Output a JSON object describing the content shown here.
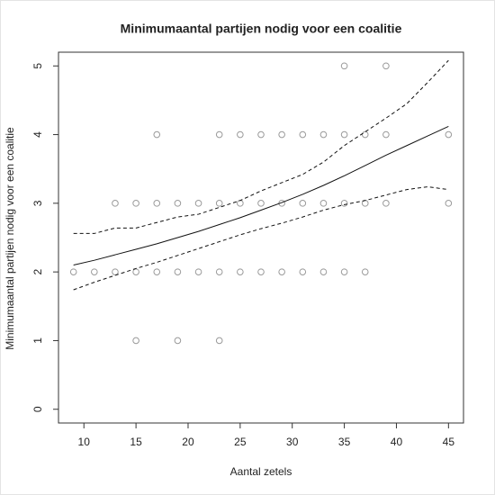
{
  "chart_data": {
    "type": "scatter",
    "title": "Minimumaantal partijen nodig voor een coalitie",
    "x_label": "Aantal zetels",
    "y_label": "Minimumaantal partijen nodig voor een coalitie",
    "xlim": [
      7.56,
      46.44
    ],
    "ylim": [
      -0.2,
      5.2
    ],
    "xticks": [
      10,
      15,
      20,
      25,
      30,
      35,
      40,
      45
    ],
    "yticks": [
      0,
      1,
      2,
      3,
      4,
      5
    ],
    "point_color": "#9a9a9a",
    "points": {
      "x": [
        9,
        11,
        13,
        15,
        17,
        19,
        21,
        23,
        25,
        27,
        29,
        31,
        33,
        35,
        37,
        13,
        15,
        17,
        19,
        21,
        23,
        25,
        27,
        29,
        31,
        33,
        35,
        37,
        39,
        45,
        17,
        23,
        25,
        27,
        29,
        31,
        33,
        35,
        37,
        39,
        45,
        35,
        39,
        15,
        19,
        23
      ],
      "y": [
        2,
        2,
        2,
        2,
        2,
        2,
        2,
        2,
        2,
        2,
        2,
        2,
        2,
        2,
        2,
        3,
        3,
        3,
        3,
        3,
        3,
        3,
        3,
        3,
        3,
        3,
        3,
        3,
        3,
        3,
        4,
        4,
        4,
        4,
        4,
        4,
        4,
        4,
        4,
        4,
        4,
        5,
        5,
        1,
        1,
        1
      ]
    },
    "curve_x": [
      9,
      11,
      13,
      15,
      17,
      19,
      21,
      23,
      25,
      27,
      29,
      31,
      33,
      35,
      37,
      39,
      41,
      43,
      45
    ],
    "lines": [
      {
        "style": "solid",
        "color": "#111111",
        "values": [
          2.1,
          2.17,
          2.25,
          2.33,
          2.41,
          2.5,
          2.59,
          2.69,
          2.79,
          2.9,
          3.01,
          3.13,
          3.26,
          3.4,
          3.55,
          3.7,
          3.84,
          3.98,
          4.12
        ]
      },
      {
        "style": "dashed",
        "color": "#111111",
        "values": [
          2.56,
          2.56,
          2.64,
          2.64,
          2.72,
          2.8,
          2.84,
          2.94,
          3.04,
          3.18,
          3.3,
          3.42,
          3.6,
          3.84,
          4.04,
          4.24,
          4.45,
          4.76,
          5.08
        ]
      },
      {
        "style": "dashed",
        "color": "#111111",
        "values": [
          1.74,
          1.85,
          1.95,
          2.05,
          2.14,
          2.24,
          2.34,
          2.44,
          2.54,
          2.63,
          2.71,
          2.8,
          2.9,
          2.98,
          3.04,
          3.12,
          3.2,
          3.24,
          3.2
        ]
      }
    ]
  }
}
